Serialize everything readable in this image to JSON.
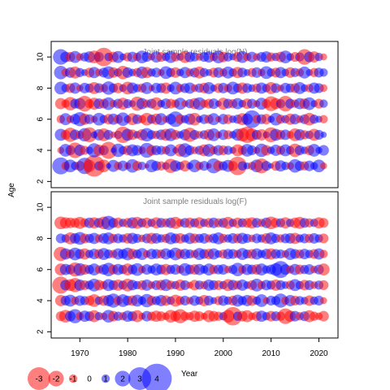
{
  "chart_data": {
    "type": "bubble-residuals",
    "xlabel": "Year",
    "ylabel": "Age",
    "xlim": [
      1964,
      2024
    ],
    "x_ticks": [
      1970,
      1980,
      1990,
      2000,
      2010,
      2020
    ],
    "y_ticks": [
      2,
      4,
      6,
      8,
      10
    ],
    "ylim": [
      1.6,
      11
    ],
    "years_start": 1966,
    "years_end": 2021,
    "colors": {
      "negative": "#ff0000",
      "positive": "#0000ff"
    },
    "opacity": 0.5,
    "panels": [
      {
        "title": "Joint sample residuals log(N)",
        "ages": [
          3,
          4,
          5,
          6,
          7,
          8,
          9,
          10
        ],
        "residuals": [
          [
            2.2,
            -1.0,
            1.6,
            1.0,
            -1.2,
            2.1,
            -1.5,
            -2.8,
            1.1,
            -1.6,
            0.6,
            1.5,
            -1.0,
            1.3,
            -0.8,
            1.7,
            -1.2,
            1.0,
            -0.5,
            1.6,
            1.2,
            -1.1,
            0.9,
            -1.8,
            1.4,
            1.0,
            -1.4,
            0.8,
            1.6,
            -1.0,
            1.2,
            -0.6,
            1.9,
            -1.3,
            1.1,
            1.5,
            -1.2,
            -2.4,
            1.1,
            0.8,
            -1.0,
            1.6,
            -1.9,
            1.2,
            0.6,
            -1.2,
            1.4,
            1.0,
            -0.9,
            1.7,
            1.2,
            -1.1,
            1.3,
            0.9,
            1.6,
            -0.8
          ],
          [
            -0.8,
            1.6,
            1.2,
            -2.0,
            1.4,
            -1.1,
            0.9,
            1.8,
            -1.4,
            1.2,
            -2.2,
            0.6,
            1.7,
            1.0,
            -1.2,
            1.5,
            1.3,
            -0.9,
            1.9,
            -1.3,
            1.2,
            1.1,
            -1.0,
            1.5,
            0.7,
            -1.6,
            1.8,
            1.2,
            -0.9,
            1.1,
            -1.5,
            1.6,
            -1.0,
            1.3,
            -1.2,
            1.1,
            0.8,
            -1.5,
            -1.1,
            1.6,
            1.2,
            -0.8,
            1.7,
            -1.3,
            0.9,
            1.4,
            -1.1,
            1.5,
            1.0,
            -1.7,
            1.2,
            0.9,
            -1.2,
            1.6,
            0.8,
            1.3
          ],
          [
            1.5,
            -1.2,
            -1.8,
            1.3,
            -1.0,
            1.7,
            -1.9,
            0.8,
            1.4,
            -1.6,
            1.2,
            -0.7,
            1.0,
            -2.1,
            1.5,
            -1.3,
            0.9,
            -1.4,
            1.7,
            1.1,
            -1.0,
            1.3,
            -1.5,
            1.6,
            -1.2,
            0.9,
            1.4,
            -1.8,
            1.2,
            -0.9,
            1.1,
            -1.4,
            1.6,
            -0.8,
            1.3,
            -1.1,
            0.9,
            1.5,
            -1.7,
            -2.1,
            -1.6,
            1.2,
            -1.4,
            0.8,
            -1.9,
            1.5,
            -1.2,
            1.3,
            -0.9,
            -1.6,
            1.4,
            -1.1,
            1.0,
            -1.5,
            1.2,
            0.7
          ],
          [
            -1.0,
            1.5,
            -0.9,
            1.3,
            1.8,
            -1.4,
            1.2,
            -0.8,
            1.6,
            1.0,
            -1.3,
            1.4,
            -1.1,
            1.7,
            0.9,
            -1.5,
            1.2,
            -1.0,
            -1.6,
            1.1,
            -1.4,
            1.5,
            -0.8,
            1.3,
            2.0,
            -1.2,
            1.0,
            1.4,
            -1.6,
            0.8,
            1.2,
            -1.1,
            1.5,
            -0.7,
            1.3,
            -1.2,
            0.9,
            1.1,
            -1.5,
            1.4,
            2.3,
            -1.0,
            1.2,
            -1.3,
            0.8,
            1.6,
            -1.1,
            1.0,
            -1.4,
            1.3,
            -0.9,
            1.2,
            -1.6,
            1.1,
            0.8,
            -1.0
          ],
          [
            -1.4,
            -1.0,
            -1.7,
            1.2,
            1.4,
            -2.0,
            -1.1,
            -1.5,
            1.3,
            -1.2,
            1.6,
            -0.9,
            1.2,
            -1.5,
            1.1,
            0.8,
            -1.8,
            1.4,
            -1.0,
            1.2,
            -1.6,
            0.9,
            1.3,
            -1.2,
            -1.0,
            1.5,
            -0.8,
            1.1,
            -1.4,
            1.6,
            -1.0,
            -1.2,
            1.3,
            0.7,
            -1.5,
            1.2,
            -1.1,
            1.4,
            0.9,
            -1.3,
            1.2,
            -0.8,
            1.5,
            -1.1,
            -1.9,
            -1.4,
            1.1,
            -2.0,
            1.2,
            -1.0,
            1.4,
            -1.3,
            1.6,
            0.8,
            -1.2,
            1.0
          ],
          [
            1.6,
            1.0,
            -1.2,
            1.4,
            -0.8,
            1.3,
            1.1,
            -1.5,
            1.2,
            -1.0,
            1.7,
            1.1,
            -1.3,
            0.9,
            -1.6,
            1.4,
            1.0,
            -1.1,
            1.5,
            -0.7,
            1.3,
            1.2,
            -1.4,
            0.9,
            1.6,
            -1.0,
            1.2,
            1.4,
            -0.9,
            1.1,
            -1.3,
            1.5,
            0.8,
            -1.2,
            1.3,
            -1.0,
            1.6,
            1.1,
            -1.4,
            1.2,
            0.9,
            -1.1,
            1.4,
            1.0,
            -1.5,
            1.2,
            -0.8,
            1.3,
            1.1,
            -1.2,
            1.5,
            0.9,
            -1.0,
            1.4,
            1.2,
            -0.9
          ],
          [
            1.7,
            -1.0,
            1.3,
            -1.5,
            1.1,
            0.8,
            -1.2,
            1.4,
            -0.9,
            1.2,
            1.6,
            -1.3,
            1.0,
            -1.7,
            1.3,
            0.9,
            -1.1,
            1.5,
            -1.4,
            1.0,
            1.2,
            -0.8,
            1.6,
            1.1,
            -1.3,
            0.9,
            1.4,
            -1.0,
            1.2,
            -1.5,
            1.1,
            0.8,
            -1.2,
            1.3,
            -1.0,
            1.5,
            1.0,
            -1.4,
            1.2,
            0.8,
            -1.1,
            1.3,
            -0.9,
            1.6,
            1.0,
            -1.2,
            1.4,
            0.9,
            -1.3,
            1.1,
            -1.0,
            1.5,
            0.8,
            -1.1,
            1.2,
            1.0
          ],
          [
            2.0,
            1.3,
            -1.2,
            1.5,
            -0.9,
            1.1,
            1.4,
            -1.6,
            1.2,
            -2.4,
            1.0,
            -1.3,
            1.5,
            0.8,
            -1.1,
            1.3,
            -1.0,
            1.6,
            1.2,
            -0.8,
            1.4,
            -1.2,
            1.0,
            1.5,
            -1.1,
            0.9,
            -1.5,
            1.3,
            1.1,
            -0.9,
            1.2,
            1.4,
            -1.0,
            1.6,
            -1.3,
            1.1,
            0.8,
            -1.2,
            1.5,
            -1.0,
            1.3,
            -0.9,
            1.2,
            1.4,
            -1.1,
            1.0,
            -1.3,
            1.6,
            0.9,
            -1.2,
            1.1,
            -2.0,
            1.3,
            -1.4,
            1.0,
            -0.8
          ]
        ]
      },
      {
        "title": "Joint sample residuals log(F)",
        "ages": [
          3,
          4,
          5,
          6,
          7,
          8,
          9
        ],
        "residuals": [
          [
            -1.2,
            -1.6,
            1.3,
            1.8,
            -1.0,
            1.4,
            1.2,
            -1.5,
            1.0,
            -0.9,
            1.6,
            -1.3,
            1.1,
            -1.0,
            1.4,
            1.2,
            -1.5,
            -0.8,
            1.3,
            -1.1,
            -1.4,
            -1.2,
            -0.9,
            -1.6,
            -1.3,
            -1.8,
            -1.1,
            -1.0,
            -1.4,
            -1.2,
            -0.8,
            -1.5,
            -1.3,
            -1.1,
            1.0,
            -1.6,
            -2.4,
            1.1,
            -1.3,
            -1.5,
            -0.9,
            -1.2,
            1.4,
            1.0,
            -1.3,
            1.2,
            -1.1,
            -2.0,
            -1.4,
            1.3,
            -1.0,
            1.2,
            -1.5,
            -1.1,
            -0.9,
            -1.3
          ],
          [
            -1.4,
            1.2,
            1.5,
            -1.0,
            1.3,
            1.1,
            -1.2,
            -1.6,
            1.0,
            -1.3,
            1.4,
            1.8,
            -1.1,
            1.6,
            1.2,
            -1.3,
            1.5,
            1.0,
            1.7,
            -1.2,
            1.1,
            1.4,
            -1.3,
            1.0,
            -1.5,
            -1.1,
            1.2,
            -0.9,
            1.3,
            1.0,
            -1.4,
            1.2,
            0.8,
            -1.1,
            1.3,
            1.0,
            -1.2,
            1.5,
            1.1,
            1.4,
            -1.3,
            1.0,
            1.6,
            -0.8,
            1.2,
            1.1,
            1.8,
            -1.0,
            1.4,
            -1.2,
            1.1,
            0.9,
            -1.3,
            1.0,
            1.2,
            -0.8
          ],
          [
            -2.2,
            1.3,
            -1.5,
            -1.8,
            1.4,
            -1.2,
            1.1,
            1.6,
            -1.3,
            -1.0,
            1.5,
            1.2,
            -1.4,
            1.1,
            -1.6,
            1.3,
            1.0,
            -1.2,
            1.4,
            -0.9,
            1.2,
            -1.3,
            1.5,
            -1.1,
            1.0,
            -1.4,
            1.2,
            -0.8,
            -1.3,
            1.1,
            -1.0,
            1.4,
            1.2,
            -1.2,
            1.0,
            -1.5,
            1.3,
            -1.1,
            1.4,
            0.9,
            -1.2,
            1.6,
            -1.0,
            1.3,
            1.1,
            -1.4,
            1.2,
            0.9,
            -1.1,
            1.5,
            1.0,
            -1.3,
            1.2,
            -0.9,
            1.1,
            -1.2
          ],
          [
            -1.5,
            1.4,
            1.2,
            -1.8,
            1.6,
            -1.3,
            1.1,
            1.5,
            -1.0,
            1.3,
            1.7,
            -1.2,
            1.4,
            1.1,
            -1.5,
            1.2,
            1.6,
            -0.9,
            1.3,
            1.0,
            1.5,
            1.2,
            -1.4,
            1.1,
            1.3,
            -1.0,
            1.6,
            1.2,
            -1.3,
            1.4,
            1.0,
            1.5,
            -1.1,
            1.2,
            1.3,
            -0.9,
            1.1,
            1.7,
            -1.0,
            1.4,
            1.2,
            -1.3,
            1.5,
            1.0,
            1.2,
            1.6,
            2.2,
            1.3,
            -1.0,
            1.4,
            -1.2,
            1.1,
            1.3,
            -0.9,
            1.2,
            -1.5
          ],
          [
            -1.8,
            1.4,
            -1.1,
            1.6,
            1.2,
            -1.4,
            1.0,
            1.3,
            -1.2,
            1.5,
            1.1,
            -1.0,
            1.4,
            1.2,
            1.6,
            -1.3,
            1.1,
            1.5,
            -0.9,
            1.3,
            1.2,
            -1.1,
            1.4,
            1.0,
            1.6,
            -1.2,
            1.3,
            1.1,
            -1.0,
            1.5,
            1.2,
            -1.3,
            1.4,
            0.9,
            -1.1,
            1.3,
            1.2,
            -1.0,
            1.5,
            1.1,
            -1.2,
            1.4,
            1.0,
            1.3,
            -1.4,
            1.2,
            1.1,
            -0.9,
            1.5,
            1.2,
            -1.1,
            1.3,
            1.0,
            -1.2,
            1.4,
            -1.0
          ],
          [
            1.2,
            1.0,
            -1.5,
            1.3,
            1.6,
            -1.2,
            1.1,
            1.4,
            -1.0,
            1.3,
            1.5,
            -1.1,
            1.2,
            1.0,
            -1.3,
            1.4,
            1.1,
            -0.9,
            1.2,
            -1.4,
            1.3,
            1.0,
            -1.1,
            1.5,
            1.2,
            -1.3,
            1.0,
            1.4,
            -1.2,
            1.1,
            1.3,
            -1.0,
            1.2,
            1.5,
            -1.1,
            1.0,
            1.3,
            -1.2,
            1.4,
            1.1,
            -0.9,
            1.2,
            1.0,
            -1.3,
            1.5,
            1.1,
            -1.0,
            1.2,
            1.3,
            -1.4,
            1.0,
            1.2,
            -1.1,
            1.3,
            1.0,
            -1.2
          ],
          [
            -1.6,
            -1.4,
            -1.3,
            -1.2,
            -1.5,
            -1.1,
            1.3,
            -1.4,
            1.2,
            -1.6,
            1.8,
            1.2,
            -1.3,
            1.0,
            -1.2,
            1.4,
            -1.5,
            1.1,
            -1.3,
            1.0,
            -1.4,
            1.2,
            -1.1,
            1.3,
            -1.5,
            -1.0,
            1.2,
            -1.3,
            1.1,
            -1.4,
            1.0,
            -1.2,
            1.3,
            -1.1,
            1.2,
            -1.5,
            1.0,
            -1.3,
            1.1,
            -1.2,
            -1.4,
            1.2,
            -1.0,
            1.3,
            -1.6,
            -1.2,
            1.1,
            -1.4,
            1.0,
            -1.3,
            -1.5,
            1.2,
            -1.1,
            1.0,
            -1.4,
            -1.2
          ]
        ]
      }
    ],
    "legend": {
      "values": [
        -3,
        -2,
        -1,
        0,
        1,
        2,
        3,
        4
      ],
      "labels": [
        "-3",
        "-2",
        "-1",
        "0",
        "1",
        "2",
        "3",
        "4"
      ]
    }
  }
}
